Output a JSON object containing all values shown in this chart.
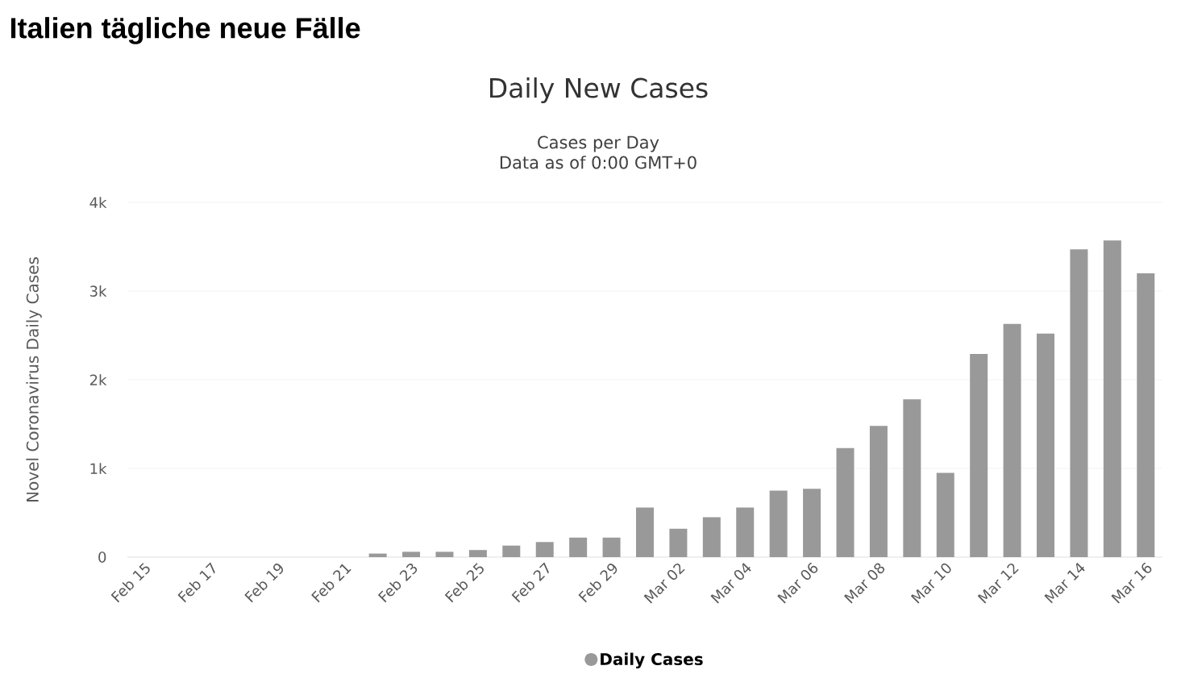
{
  "chart_data": {
    "type": "bar",
    "title": "Daily New Cases",
    "subtitle": "Cases per Day\nData as of 0:00 GMT+0",
    "annotations": [
      "Italien tägliche neue Fälle"
    ],
    "ylabel": "Novel Coronavirus Daily Cases",
    "categories": [
      "Feb 15",
      null,
      "Feb 17",
      null,
      "Feb 19",
      null,
      "Feb 21",
      null,
      "Feb 23",
      null,
      "Feb 25",
      null,
      "Feb 27",
      null,
      "Feb 29",
      null,
      "Mar 02",
      null,
      "Mar 04",
      null,
      "Mar 06",
      null,
      "Mar 08",
      null,
      "Mar 10",
      null,
      "Mar 12",
      null,
      "Mar 14",
      null,
      "Mar 16"
    ],
    "series": [
      {
        "name": "Daily Cases",
        "color": "#999999",
        "values": [
          0,
          0,
          0,
          0,
          0,
          0,
          0,
          40,
          60,
          60,
          80,
          130,
          170,
          220,
          220,
          560,
          320,
          450,
          560,
          750,
          770,
          1230,
          1480,
          1780,
          950,
          2290,
          2630,
          2520,
          3470,
          3570,
          3200
        ]
      }
    ],
    "ylim": [
      0,
      4000
    ],
    "yticks": [
      {
        "value": 0,
        "label": "0"
      },
      {
        "value": 1000,
        "label": "1k"
      },
      {
        "value": 2000,
        "label": "2k"
      },
      {
        "value": 3000,
        "label": "3k"
      },
      {
        "value": 4000,
        "label": "4k"
      }
    ],
    "grid": "y",
    "legend": "bottom"
  }
}
